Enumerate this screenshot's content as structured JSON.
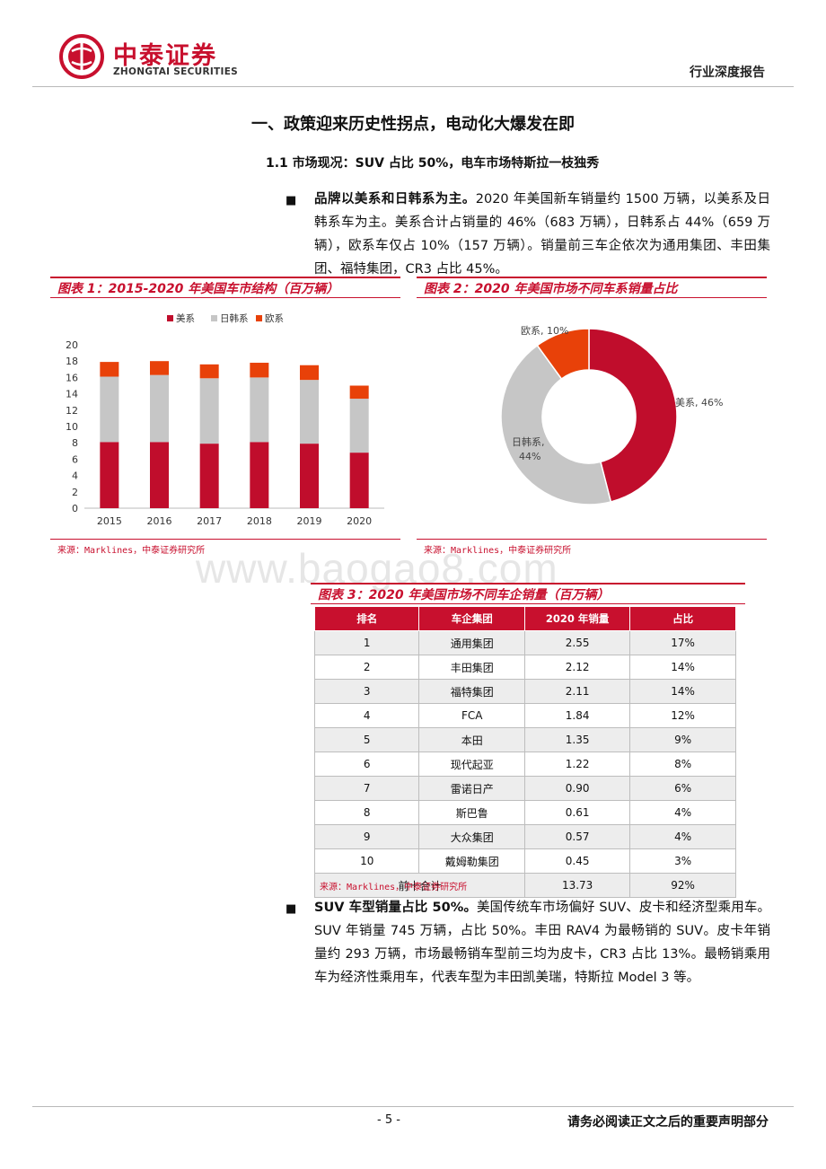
{
  "header": {
    "logo_cn": "中泰证券",
    "logo_en": "ZHONGTAI SECURITIES",
    "report_type": "行业深度报告"
  },
  "section_title": "一、政策迎来历史性拐点，电动化大爆发在即",
  "sub_title": "1.1  市场现况：SUV 占比 50%，电车市场特斯拉一枝独秀",
  "para1": {
    "bullet": "■",
    "lead": "品牌以美系和日韩系为主。",
    "text": "2020 年美国新车销量约 1500 万辆，以美系及日韩系车为主。美系合计占销量的 46%（683 万辆），日韩系占 44%（659 万辆），欧系车仅占 10%（157 万辆）。销量前三车企依次为通用集团、丰田集团、福特集团，CR3 占比 45%。"
  },
  "fig1": {
    "title": "图表 1：2015-2020 年美国车市结构（百万辆）",
    "source": "来源：Marklines，中泰证券研究所"
  },
  "fig2": {
    "title": "图表 2：2020 年美国市场不同车系销量占比",
    "source": "来源：Marklines，中泰证券研究所"
  },
  "fig3": {
    "title": "图表 3：2020 年美国市场不同车企销量（百万辆）",
    "source": "来源：Marklines，中泰证券研究所",
    "headers": [
      "排名",
      "车企集团",
      "2020 年销量",
      "占比"
    ],
    "rows": [
      [
        "1",
        "通用集团",
        "2.55",
        "17%"
      ],
      [
        "2",
        "丰田集团",
        "2.12",
        "14%"
      ],
      [
        "3",
        "福特集团",
        "2.11",
        "14%"
      ],
      [
        "4",
        "FCA",
        "1.84",
        "12%"
      ],
      [
        "5",
        "本田",
        "1.35",
        "9%"
      ],
      [
        "6",
        "现代起亚",
        "1.22",
        "8%"
      ],
      [
        "7",
        "雷诺日产",
        "0.90",
        "6%"
      ],
      [
        "8",
        "斯巴鲁",
        "0.61",
        "4%"
      ],
      [
        "9",
        "大众集团",
        "0.57",
        "4%"
      ],
      [
        "10",
        "戴姆勒集团",
        "0.45",
        "3%"
      ]
    ],
    "total": [
      "前十合计",
      "13.73",
      "92%"
    ]
  },
  "para2": {
    "bullet": "■",
    "lead": "SUV 车型销量占比 50%。",
    "text": "美国传统车市场偏好 SUV、皮卡和经济型乘用车。SUV 年销量 745 万辆，占比 50%。丰田 RAV4 为最畅销的 SUV。皮卡年销量约 293 万辆，市场最畅销车型前三均为皮卡，CR3 占比 13%。最畅销乘用车为经济性乘用车，代表车型为丰田凯美瑞，特斯拉 Model 3 等。"
  },
  "watermark": "www.baogao8.com",
  "footer": {
    "page": "- 5 -",
    "disclaimer": "请务必阅读正文之后的重要声明部分"
  },
  "colors": {
    "us": "#c00d2c",
    "jk": "#c6c6c6",
    "eu": "#e84109",
    "brand": "#c8102e"
  },
  "chart_data": [
    {
      "type": "bar",
      "stacked": true,
      "categories": [
        "2015",
        "2016",
        "2017",
        "2018",
        "2019",
        "2020"
      ],
      "series": [
        {
          "name": "美系",
          "values": [
            8.1,
            8.1,
            7.9,
            8.1,
            7.9,
            6.8
          ]
        },
        {
          "name": "日韩系",
          "values": [
            8.0,
            8.2,
            8.0,
            7.9,
            7.8,
            6.6
          ]
        },
        {
          "name": "欧系",
          "values": [
            1.8,
            1.7,
            1.7,
            1.8,
            1.8,
            1.6
          ]
        }
      ],
      "ylim": [
        0,
        20
      ],
      "yticks": [
        0,
        2,
        4,
        6,
        8,
        10,
        12,
        14,
        16,
        18,
        20
      ],
      "legend": "top"
    },
    {
      "type": "pie",
      "donut": true,
      "slices": [
        {
          "label": "美系",
          "value": 46,
          "text": "美系, 46%"
        },
        {
          "label": "日韩系",
          "value": 44,
          "text": "日韩系,",
          "text2": "44%"
        },
        {
          "label": "欧系",
          "value": 10,
          "text": "欧系, 10%"
        }
      ]
    }
  ]
}
